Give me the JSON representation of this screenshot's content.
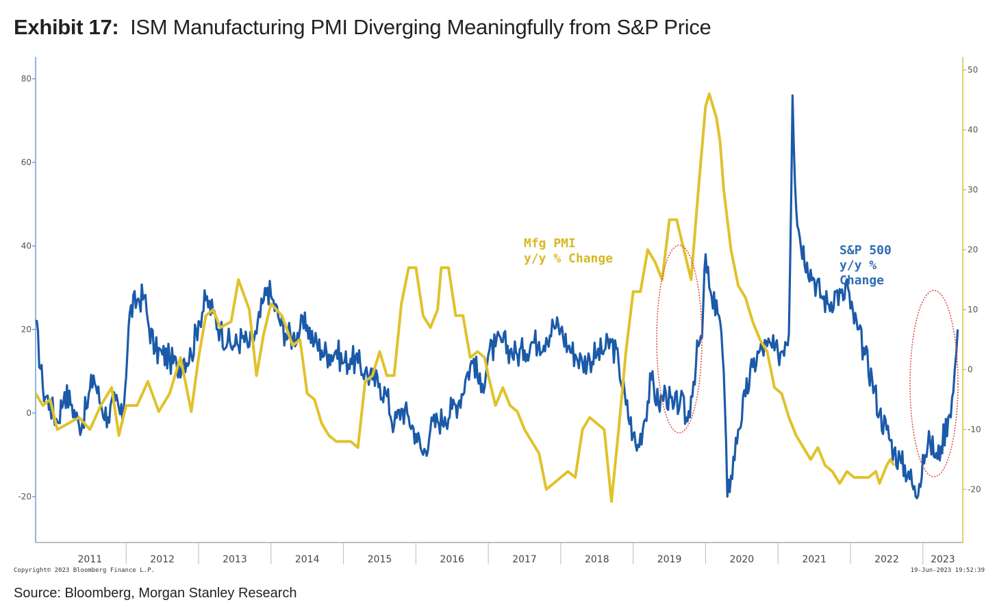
{
  "header": {
    "exhibit_label": "Exhibit 17:",
    "title_text": "ISM Manufacturing PMI Diverging Meaningfully from S&P Price"
  },
  "footer": {
    "source": "Source: Bloomberg, Morgan Stanley Research",
    "copyright": "Copyright© 2023 Bloomberg Finance L.P.",
    "timestamp": "19-Jun-2023 19:52:39"
  },
  "colors": {
    "sp500": "#1b5aa8",
    "pmi": "#e0c22c",
    "circle": "#e04a4a",
    "axis": "#6a9fd4",
    "axis_right": "#d4c23a"
  },
  "chart_data": {
    "type": "line",
    "title": "ISM Manufacturing PMI Diverging Meaningfully from S&P Price",
    "x_range": [
      2010.75,
      2023.55
    ],
    "years": [
      "2011",
      "2012",
      "2013",
      "2014",
      "2015",
      "2016",
      "2017",
      "2018",
      "2019",
      "2020",
      "2021",
      "2022",
      "2023"
    ],
    "left_axis": {
      "ticks": [
        80,
        60,
        40,
        20,
        0,
        -20
      ],
      "ylim": [
        -31,
        84
      ]
    },
    "right_axis": {
      "ticks": [
        50,
        40,
        30,
        20,
        10,
        0,
        -10,
        -20
      ],
      "ylim": [
        -26,
        52
      ]
    },
    "series": [
      {
        "name": "S&P 500 y/y % Change",
        "label_lines": [
          "S&P 500",
          "y/y %",
          "Change"
        ],
        "axis": "left",
        "points": [
          [
            2010.75,
            22
          ],
          [
            2010.85,
            6
          ],
          [
            2010.95,
            2
          ],
          [
            2011.05,
            -2
          ],
          [
            2011.15,
            5
          ],
          [
            2011.25,
            2
          ],
          [
            2011.35,
            -3
          ],
          [
            2011.45,
            1
          ],
          [
            2011.55,
            9
          ],
          [
            2011.65,
            2
          ],
          [
            2011.75,
            -1
          ],
          [
            2011.85,
            3
          ],
          [
            2011.95,
            -2
          ],
          [
            2012.05,
            24
          ],
          [
            2012.15,
            27
          ],
          [
            2012.25,
            28
          ],
          [
            2012.3,
            22
          ],
          [
            2012.4,
            15
          ],
          [
            2012.5,
            14
          ],
          [
            2012.6,
            13
          ],
          [
            2012.7,
            11
          ],
          [
            2012.8,
            13
          ],
          [
            2012.9,
            14
          ],
          [
            2013.0,
            22
          ],
          [
            2013.1,
            27
          ],
          [
            2013.2,
            24
          ],
          [
            2013.3,
            20
          ],
          [
            2013.4,
            17
          ],
          [
            2013.5,
            16
          ],
          [
            2013.6,
            18
          ],
          [
            2013.7,
            16
          ],
          [
            2013.8,
            19
          ],
          [
            2013.9,
            27
          ],
          [
            2013.95,
            30
          ],
          [
            2014.0,
            28
          ],
          [
            2014.1,
            23
          ],
          [
            2014.2,
            19
          ],
          [
            2014.3,
            18
          ],
          [
            2014.4,
            20
          ],
          [
            2014.5,
            21
          ],
          [
            2014.6,
            17
          ],
          [
            2014.7,
            15
          ],
          [
            2014.8,
            14
          ],
          [
            2014.9,
            15
          ],
          [
            2015.0,
            12
          ],
          [
            2015.1,
            13
          ],
          [
            2015.2,
            12
          ],
          [
            2015.3,
            10
          ],
          [
            2015.4,
            8
          ],
          [
            2015.5,
            7
          ],
          [
            2015.6,
            4
          ],
          [
            2015.7,
            -3
          ],
          [
            2015.8,
            1
          ],
          [
            2015.9,
            -1
          ],
          [
            2016.0,
            -5
          ],
          [
            2016.1,
            -10
          ],
          [
            2016.2,
            -4
          ],
          [
            2016.3,
            -2
          ],
          [
            2016.4,
            -1
          ],
          [
            2016.5,
            1
          ],
          [
            2016.6,
            3
          ],
          [
            2016.7,
            9
          ],
          [
            2016.8,
            13
          ],
          [
            2016.9,
            5
          ],
          [
            2017.0,
            14
          ],
          [
            2017.1,
            16
          ],
          [
            2017.2,
            17
          ],
          [
            2017.3,
            15
          ],
          [
            2017.4,
            14
          ],
          [
            2017.5,
            15
          ],
          [
            2017.6,
            17
          ],
          [
            2017.7,
            17
          ],
          [
            2017.8,
            18
          ],
          [
            2017.9,
            21
          ],
          [
            2018.0,
            20
          ],
          [
            2018.1,
            16
          ],
          [
            2018.2,
            14
          ],
          [
            2018.3,
            12
          ],
          [
            2018.4,
            13
          ],
          [
            2018.5,
            14
          ],
          [
            2018.6,
            15
          ],
          [
            2018.7,
            17
          ],
          [
            2018.8,
            12
          ],
          [
            2018.9,
            2
          ],
          [
            2019.0,
            -5
          ],
          [
            2019.05,
            -9
          ],
          [
            2019.15,
            -2
          ],
          [
            2019.25,
            8
          ],
          [
            2019.35,
            2
          ],
          [
            2019.45,
            5
          ],
          [
            2019.55,
            1
          ],
          [
            2019.65,
            3
          ],
          [
            2019.75,
            -2
          ],
          [
            2019.8,
            4
          ],
          [
            2019.9,
            16
          ],
          [
            2019.95,
            18
          ],
          [
            2020.0,
            38
          ],
          [
            2020.05,
            30
          ],
          [
            2020.1,
            25
          ],
          [
            2020.15,
            27
          ],
          [
            2020.2,
            22
          ],
          [
            2020.25,
            10
          ],
          [
            2020.3,
            -20
          ],
          [
            2020.35,
            -15
          ],
          [
            2020.45,
            -4
          ],
          [
            2020.55,
            4
          ],
          [
            2020.65,
            11
          ],
          [
            2020.75,
            15
          ],
          [
            2020.85,
            16
          ],
          [
            2020.95,
            15
          ],
          [
            2021.0,
            14
          ],
          [
            2021.1,
            17
          ],
          [
            2021.15,
            19
          ],
          [
            2021.2,
            76
          ],
          [
            2021.25,
            49
          ],
          [
            2021.3,
            42
          ],
          [
            2021.4,
            36
          ],
          [
            2021.5,
            32
          ],
          [
            2021.6,
            28
          ],
          [
            2021.7,
            26
          ],
          [
            2021.8,
            29
          ],
          [
            2021.9,
            27
          ],
          [
            2021.95,
            32
          ],
          [
            2022.0,
            25
          ],
          [
            2022.1,
            20
          ],
          [
            2022.2,
            14
          ],
          [
            2022.3,
            8
          ],
          [
            2022.4,
            0
          ],
          [
            2022.5,
            -4
          ],
          [
            2022.6,
            -9
          ],
          [
            2022.7,
            -12
          ],
          [
            2022.8,
            -14
          ],
          [
            2022.9,
            -20
          ],
          [
            2022.95,
            -17
          ],
          [
            2023.0,
            -10
          ],
          [
            2023.1,
            -7
          ],
          [
            2023.2,
            -11
          ],
          [
            2023.25,
            -8
          ],
          [
            2023.35,
            -1
          ],
          [
            2023.42,
            5
          ],
          [
            2023.48,
            20
          ]
        ]
      },
      {
        "name": "Mfg PMI y/y % Change",
        "label_lines": [
          "Mfg PMI",
          "y/y % Change"
        ],
        "axis": "right",
        "points": [
          [
            2010.75,
            -4
          ],
          [
            2010.85,
            -6
          ],
          [
            2010.95,
            -5
          ],
          [
            2011.05,
            -10
          ],
          [
            2011.2,
            -9
          ],
          [
            2011.35,
            -8
          ],
          [
            2011.5,
            -10
          ],
          [
            2011.65,
            -6
          ],
          [
            2011.8,
            -3
          ],
          [
            2011.9,
            -11
          ],
          [
            2012.0,
            -6
          ],
          [
            2012.15,
            -6
          ],
          [
            2012.3,
            -2
          ],
          [
            2012.45,
            -7
          ],
          [
            2012.6,
            -4
          ],
          [
            2012.75,
            2
          ],
          [
            2012.9,
            -7
          ],
          [
            2013.0,
            2
          ],
          [
            2013.1,
            9
          ],
          [
            2013.2,
            10
          ],
          [
            2013.3,
            7
          ],
          [
            2013.45,
            8
          ],
          [
            2013.55,
            15
          ],
          [
            2013.7,
            10
          ],
          [
            2013.8,
            -1
          ],
          [
            2013.9,
            6
          ],
          [
            2014.0,
            11
          ],
          [
            2014.15,
            9
          ],
          [
            2014.3,
            4
          ],
          [
            2014.4,
            5
          ],
          [
            2014.5,
            -4
          ],
          [
            2014.6,
            -5
          ],
          [
            2014.7,
            -9
          ],
          [
            2014.8,
            -11
          ],
          [
            2014.9,
            -12
          ],
          [
            2015.0,
            -12
          ],
          [
            2015.1,
            -12
          ],
          [
            2015.2,
            -13
          ],
          [
            2015.3,
            -2
          ],
          [
            2015.4,
            -1
          ],
          [
            2015.5,
            3
          ],
          [
            2015.6,
            -1
          ],
          [
            2015.7,
            -1
          ],
          [
            2015.8,
            11
          ],
          [
            2015.9,
            17
          ],
          [
            2016.0,
            17
          ],
          [
            2016.1,
            9
          ],
          [
            2016.2,
            7
          ],
          [
            2016.3,
            10
          ],
          [
            2016.35,
            17
          ],
          [
            2016.45,
            17
          ],
          [
            2016.55,
            9
          ],
          [
            2016.65,
            9
          ],
          [
            2016.75,
            2
          ],
          [
            2016.85,
            3
          ],
          [
            2016.95,
            2
          ],
          [
            2017.0,
            -1
          ],
          [
            2017.1,
            -6
          ],
          [
            2017.2,
            -3
          ],
          [
            2017.3,
            -6
          ],
          [
            2017.4,
            -7
          ],
          [
            2017.5,
            -10
          ],
          [
            2017.6,
            -12
          ],
          [
            2017.7,
            -14
          ],
          [
            2017.8,
            -20
          ],
          [
            2017.9,
            -19
          ],
          [
            2018.0,
            -18
          ],
          [
            2018.1,
            -17
          ],
          [
            2018.2,
            -18
          ],
          [
            2018.3,
            -10
          ],
          [
            2018.4,
            -8
          ],
          [
            2018.5,
            -9
          ],
          [
            2018.6,
            -10
          ],
          [
            2018.7,
            -22
          ],
          [
            2018.8,
            -10
          ],
          [
            2018.9,
            3
          ],
          [
            2019.0,
            13
          ],
          [
            2019.1,
            13
          ],
          [
            2019.2,
            20
          ],
          [
            2019.3,
            18
          ],
          [
            2019.4,
            15
          ],
          [
            2019.5,
            25
          ],
          [
            2019.6,
            25
          ],
          [
            2019.7,
            20
          ],
          [
            2019.8,
            15
          ],
          [
            2019.9,
            30
          ],
          [
            2020.0,
            44
          ],
          [
            2020.05,
            46
          ],
          [
            2020.15,
            42
          ],
          [
            2020.2,
            38
          ],
          [
            2020.25,
            30
          ],
          [
            2020.35,
            20
          ],
          [
            2020.45,
            14
          ],
          [
            2020.55,
            12
          ],
          [
            2020.65,
            8
          ],
          [
            2020.75,
            5
          ],
          [
            2020.85,
            3
          ],
          [
            2020.95,
            -3
          ],
          [
            2021.05,
            -4
          ],
          [
            2021.15,
            -8
          ],
          [
            2021.25,
            -11
          ],
          [
            2021.35,
            -13
          ],
          [
            2021.45,
            -15
          ],
          [
            2021.55,
            -13
          ],
          [
            2021.65,
            -16
          ],
          [
            2021.75,
            -17
          ],
          [
            2021.85,
            -19
          ],
          [
            2021.95,
            -17
          ],
          [
            2022.05,
            -18
          ],
          [
            2022.15,
            -18
          ],
          [
            2022.25,
            -18
          ],
          [
            2022.35,
            -17
          ],
          [
            2022.4,
            -19
          ],
          [
            2022.5,
            -16
          ],
          [
            2022.55,
            -15
          ],
          [
            2022.6,
            -16
          ]
        ]
      }
    ],
    "annotations": [
      "red dotted ellipse around 2019/2020 peak",
      "red dotted ellipse around 2023 divergence"
    ]
  }
}
